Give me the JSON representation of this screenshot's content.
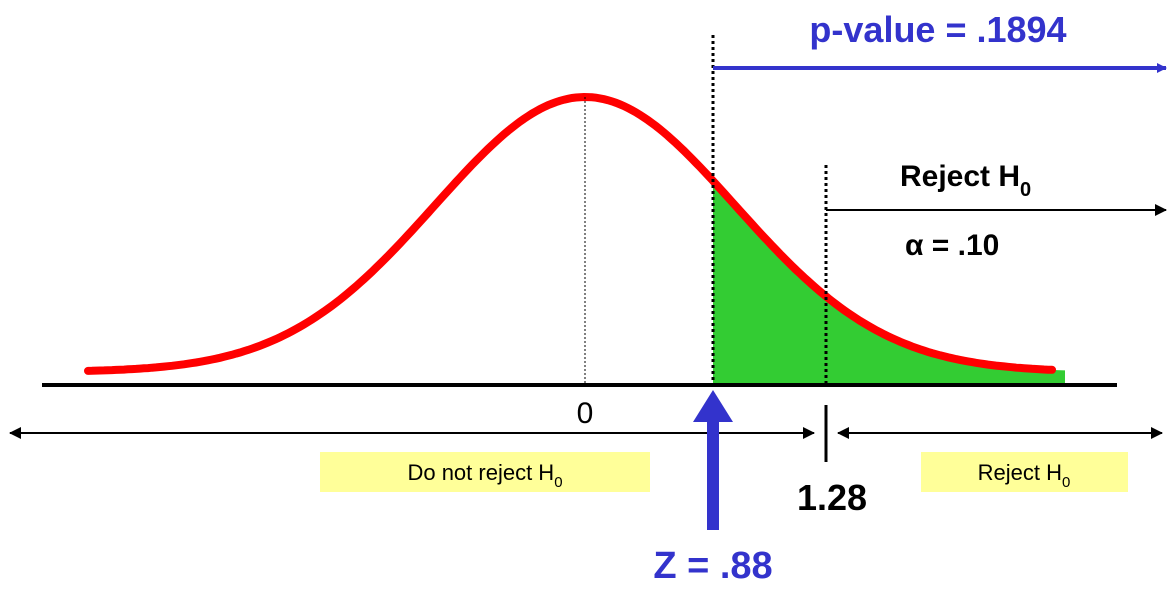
{
  "p_value": "p-value = .1894",
  "reject_top": {
    "text": "Reject H",
    "sub": "0"
  },
  "alpha": "α = .10",
  "mean": "0",
  "do_not_reject": {
    "text": "Do not reject H",
    "sub": "0"
  },
  "reject_bottom": {
    "text": "Reject H",
    "sub": "0"
  },
  "critical": "1.28",
  "z_stat": "Z = .88"
}
